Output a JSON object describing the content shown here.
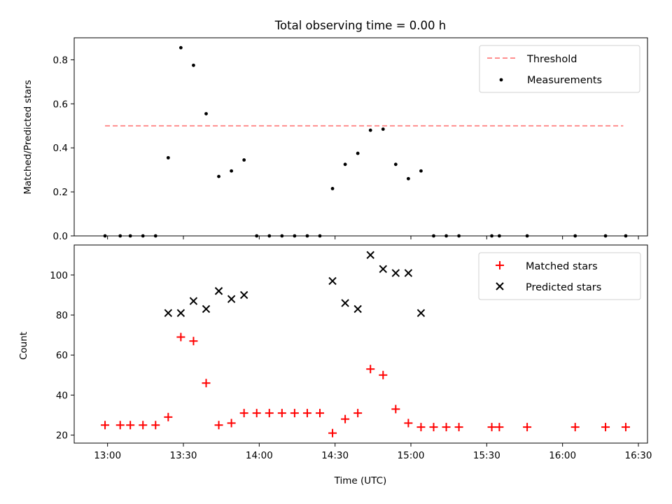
{
  "chart_data": {
    "title": "Total observing time = 0.00 h",
    "xlabel": "Time (UTC)",
    "x_ticks": [
      "13:00",
      "13:30",
      "14:00",
      "14:30",
      "15:00",
      "15:30",
      "16:00",
      "16:30"
    ],
    "x_tick_hours": [
      13.0,
      13.5,
      14.0,
      14.5,
      15.0,
      15.5,
      16.0,
      16.5
    ],
    "xlim_hours": [
      12.78,
      16.56
    ],
    "panels": [
      {
        "type": "scatter",
        "ylabel": "Matched/Predicted stars",
        "ylim": [
          0,
          0.9
        ],
        "y_ticks": [
          "0.0",
          "0.2",
          "0.4",
          "0.6",
          "0.8"
        ],
        "y_tick_values": [
          0.0,
          0.2,
          0.4,
          0.6,
          0.8
        ],
        "threshold": {
          "name": "Threshold",
          "value": 0.5,
          "x_range": [
            "12:59",
            "16:24"
          ],
          "color": "#ff7f7f"
        },
        "series": [
          {
            "name": "Measurements",
            "color": "#000000",
            "marker": "dot",
            "x": [
              "12:59",
              "13:05",
              "13:09",
              "13:14",
              "13:19",
              "13:24",
              "13:29",
              "13:34",
              "13:39",
              "13:44",
              "13:49",
              "13:54",
              "13:59",
              "14:04",
              "14:09",
              "14:14",
              "14:19",
              "14:24",
              "14:29",
              "14:34",
              "14:39",
              "14:44",
              "14:49",
              "14:54",
              "14:59",
              "15:04",
              "15:09",
              "15:14",
              "15:19",
              "15:32",
              "15:35",
              "15:46",
              "16:05",
              "16:17",
              "16:25"
            ],
            "y": [
              0.0,
              0.0,
              0.0,
              0.0,
              0.0,
              0.355,
              0.855,
              0.775,
              0.555,
              0.27,
              0.295,
              0.345,
              0.0,
              0.0,
              0.0,
              0.0,
              0.0,
              0.0,
              0.215,
              0.325,
              0.375,
              0.48,
              0.485,
              0.325,
              0.26,
              0.295,
              0.0,
              0.0,
              0.0,
              0.0,
              0.0,
              0.0,
              0.0,
              0.0,
              0.0
            ]
          }
        ]
      },
      {
        "type": "scatter",
        "ylabel": "Count",
        "ylim": [
          16,
          115
        ],
        "y_ticks": [
          "20",
          "40",
          "60",
          "80",
          "100"
        ],
        "y_tick_values": [
          20,
          40,
          60,
          80,
          100
        ],
        "series": [
          {
            "name": "Matched stars",
            "color": "#ff0000",
            "marker": "plus",
            "x": [
              "12:59",
              "13:05",
              "13:09",
              "13:14",
              "13:19",
              "13:24",
              "13:29",
              "13:34",
              "13:39",
              "13:44",
              "13:49",
              "13:54",
              "13:59",
              "14:04",
              "14:09",
              "14:14",
              "14:19",
              "14:24",
              "14:29",
              "14:34",
              "14:39",
              "14:44",
              "14:49",
              "14:54",
              "14:59",
              "15:04",
              "15:09",
              "15:14",
              "15:19",
              "15:32",
              "15:35",
              "15:46",
              "16:05",
              "16:17",
              "16:25"
            ],
            "y": [
              25,
              25,
              25,
              25,
              25,
              29,
              69,
              67,
              46,
              25,
              26,
              31,
              31,
              31,
              31,
              31,
              31,
              31,
              21,
              28,
              31,
              53,
              50,
              33,
              26,
              24,
              24,
              24,
              24,
              24,
              24,
              24,
              24,
              24,
              24
            ]
          },
          {
            "name": "Predicted stars",
            "color": "#000000",
            "marker": "x",
            "x": [
              "13:24",
              "13:29",
              "13:34",
              "13:39",
              "13:44",
              "13:49",
              "13:54",
              "14:29",
              "14:34",
              "14:39",
              "14:44",
              "14:49",
              "14:54",
              "14:59",
              "15:04"
            ],
            "y": [
              81,
              81,
              87,
              83,
              92,
              88,
              90,
              97,
              86,
              83,
              110,
              103,
              101,
              101,
              81
            ]
          }
        ]
      }
    ]
  }
}
